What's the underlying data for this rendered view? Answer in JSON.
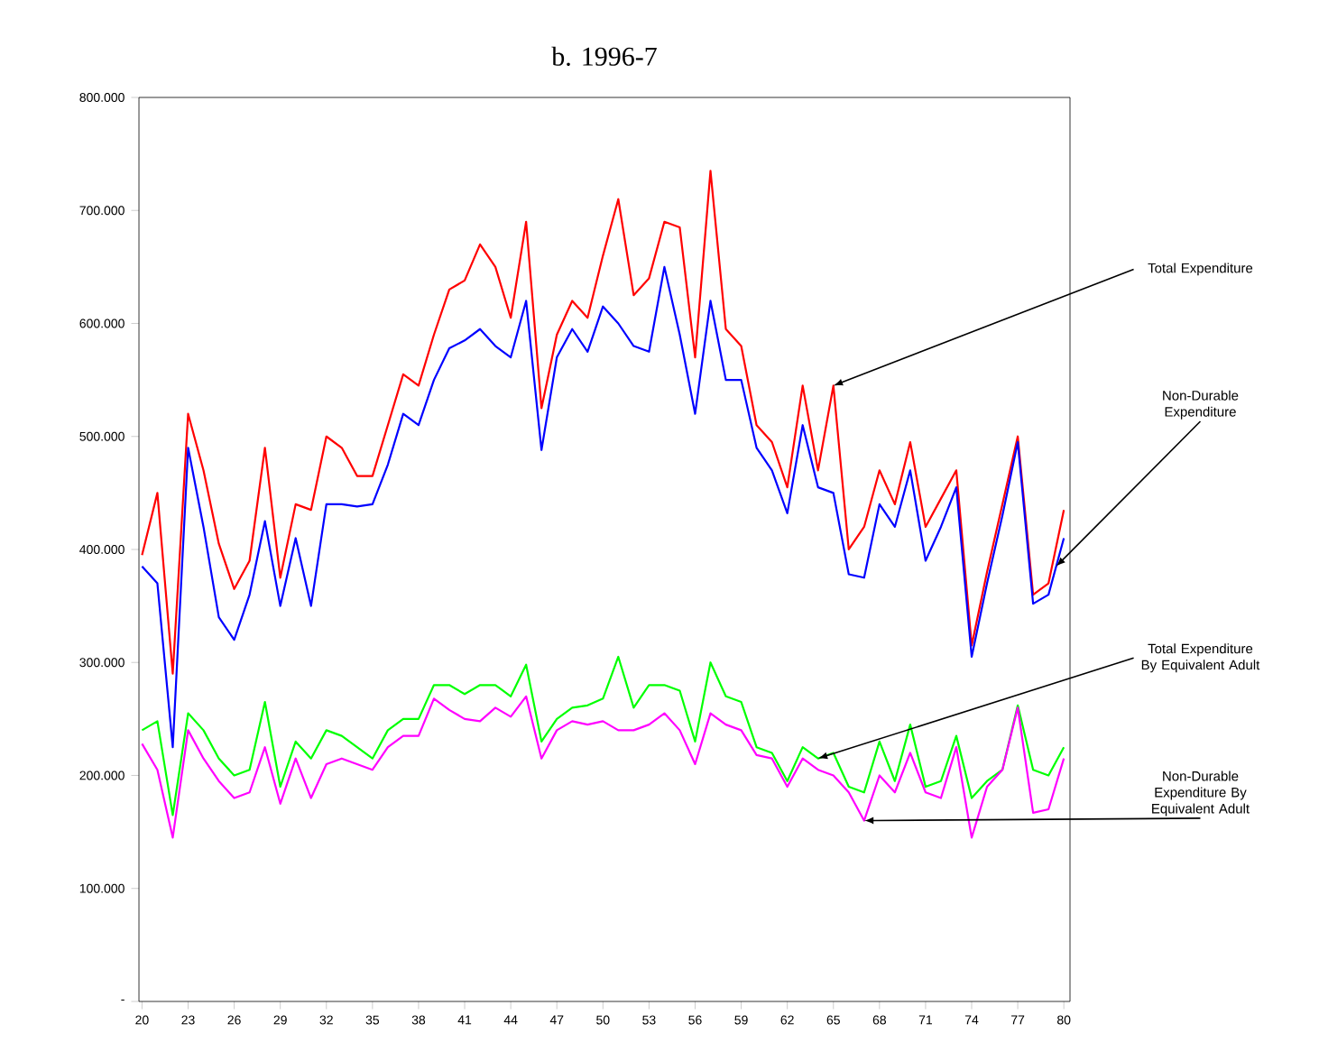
{
  "chart_data": {
    "type": "line",
    "title": "b.  1996-7",
    "x": [
      20,
      21,
      22,
      23,
      24,
      25,
      26,
      27,
      28,
      29,
      30,
      31,
      32,
      33,
      34,
      35,
      36,
      37,
      38,
      39,
      40,
      41,
      42,
      43,
      44,
      45,
      46,
      47,
      48,
      49,
      50,
      51,
      52,
      53,
      54,
      55,
      56,
      57,
      58,
      59,
      60,
      61,
      62,
      63,
      64,
      65,
      66,
      67,
      68,
      69,
      70,
      71,
      72,
      73,
      74,
      75,
      76,
      77,
      78,
      79,
      80
    ],
    "series": [
      {
        "color": "#ff0000",
        "values": [
          395000,
          450000,
          290000,
          520000,
          470000,
          405000,
          365000,
          390000,
          490000,
          375000,
          440000,
          435000,
          500000,
          490000,
          465000,
          465000,
          510000,
          555000,
          545000,
          590000,
          630000,
          638000,
          670000,
          650000,
          605000,
          690000,
          525000,
          590000,
          620000,
          605000,
          660000,
          710000,
          625000,
          640000,
          690000,
          685000,
          570000,
          735000,
          595000,
          580000,
          510000,
          495000,
          455000,
          545000,
          470000,
          545000,
          400000,
          420000,
          470000,
          440000,
          495000,
          420000,
          445000,
          470000,
          315000,
          380000,
          440000,
          500000,
          360000,
          370000,
          435000
        ]
      },
      {
        "color": "#0000ff",
        "values": [
          385000,
          370000,
          225000,
          490000,
          420000,
          340000,
          320000,
          360000,
          425000,
          350000,
          410000,
          350000,
          440000,
          440000,
          438000,
          440000,
          475000,
          520000,
          510000,
          550000,
          578000,
          585000,
          595000,
          580000,
          570000,
          620000,
          488000,
          570000,
          595000,
          575000,
          615000,
          600000,
          580000,
          575000,
          650000,
          590000,
          520000,
          620000,
          550000,
          550000,
          490000,
          470000,
          432000,
          510000,
          455000,
          450000,
          378000,
          375000,
          440000,
          420000,
          470000,
          390000,
          420000,
          455000,
          305000,
          370000,
          430000,
          495000,
          352000,
          360000,
          410000
        ]
      },
      {
        "color": "#00ff00",
        "values": [
          240000,
          248000,
          165000,
          255000,
          240000,
          215000,
          200000,
          205000,
          265000,
          190000,
          230000,
          215000,
          240000,
          235000,
          225000,
          215000,
          240000,
          250000,
          250000,
          280000,
          280000,
          272000,
          280000,
          280000,
          270000,
          298000,
          230000,
          250000,
          260000,
          262000,
          268000,
          305000,
          260000,
          280000,
          280000,
          275000,
          230000,
          300000,
          270000,
          265000,
          225000,
          220000,
          195000,
          225000,
          215000,
          220000,
          190000,
          185000,
          230000,
          195000,
          245000,
          190000,
          195000,
          235000,
          180000,
          195000,
          205000,
          262000,
          205000,
          200000,
          225000
        ]
      },
      {
        "color": "#ff00ff",
        "values": [
          228000,
          205000,
          145000,
          240000,
          215000,
          195000,
          180000,
          185000,
          225000,
          175000,
          215000,
          180000,
          210000,
          215000,
          210000,
          205000,
          225000,
          235000,
          235000,
          268000,
          258000,
          250000,
          248000,
          260000,
          252000,
          270000,
          215000,
          240000,
          248000,
          245000,
          248000,
          240000,
          240000,
          245000,
          255000,
          240000,
          210000,
          255000,
          245000,
          240000,
          218000,
          215000,
          190000,
          215000,
          205000,
          200000,
          185000,
          160000,
          200000,
          185000,
          220000,
          185000,
          180000,
          225000,
          145000,
          190000,
          205000,
          260000,
          167000,
          170000,
          215000
        ]
      }
    ],
    "xlim": [
      19.8,
      80.4
    ],
    "ylim": [
      0,
      800000
    ],
    "xticks": [
      20,
      23,
      26,
      29,
      32,
      35,
      38,
      41,
      44,
      47,
      50,
      53,
      56,
      59,
      62,
      65,
      68,
      71,
      74,
      77,
      80
    ],
    "yticks": [
      {
        "value": 0,
        "label": "-"
      },
      {
        "value": 100000,
        "label": "100.000"
      },
      {
        "value": 200000,
        "label": "200.000"
      },
      {
        "value": 300000,
        "label": "300.000"
      },
      {
        "value": 400000,
        "label": "400.000"
      },
      {
        "value": 500000,
        "label": "500.000"
      },
      {
        "value": 600000,
        "label": "600.000"
      },
      {
        "value": 700000,
        "label": "700.000"
      },
      {
        "value": 800000,
        "label": "800.000"
      }
    ],
    "annotations": [
      {
        "text": "Total Expenditure",
        "x": 65,
        "y": 545000
      },
      {
        "text": "Non-Durable Expenditure",
        "x": 79.5,
        "y": 385000
      },
      {
        "text": "Total Expenditure By Equivalent Adult",
        "x": 64,
        "y": 215000
      },
      {
        "text": "Non-Durable Expenditure By Equivalent Adult",
        "x": 67,
        "y": 160000
      }
    ]
  }
}
